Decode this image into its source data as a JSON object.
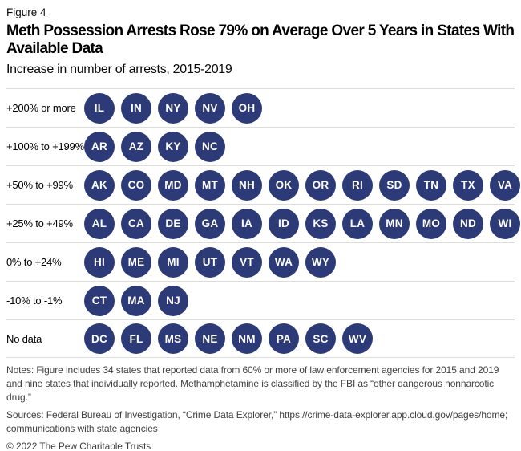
{
  "figure_label": "Figure 4",
  "title": "Meth Possession Arrests Rose 79% on Average Over 5 Years in States With Available Data",
  "subtitle": "Increase in number of arrests, 2015-2019",
  "chart_data": {
    "type": "table",
    "title": "Meth Possession Arrests Rose 79% on Average Over 5 Years in States With Available Data",
    "subtitle": "Increase in number of arrests, 2015-2019",
    "categories": [
      "+200% or more",
      "+100% to +199%",
      "+50% to +99%",
      "+25% to +49%",
      "0% to +24%",
      "-10% to -1%",
      "No data"
    ],
    "rows": [
      {
        "label": "+200% or more",
        "states": [
          "IL",
          "IN",
          "NY",
          "NV",
          "OH"
        ]
      },
      {
        "label": "+100% to +199%",
        "states": [
          "AR",
          "AZ",
          "KY",
          "NC"
        ]
      },
      {
        "label": "+50% to +99%",
        "states": [
          "AK",
          "CO",
          "MD",
          "MT",
          "NH",
          "OK",
          "OR",
          "RI",
          "SD",
          "TN",
          "TX",
          "VA"
        ]
      },
      {
        "label": "+25% to +49%",
        "states": [
          "AL",
          "CA",
          "DE",
          "GA",
          "IA",
          "ID",
          "KS",
          "LA",
          "MN",
          "MO",
          "ND",
          "WI"
        ]
      },
      {
        "label": "0% to +24%",
        "states": [
          "HI",
          "ME",
          "MI",
          "UT",
          "VT",
          "WA",
          "WY"
        ]
      },
      {
        "label": "-10% to -1%",
        "states": [
          "CT",
          "MA",
          "NJ"
        ]
      },
      {
        "label": "No data",
        "states": [
          "DC",
          "FL",
          "MS",
          "NE",
          "NM",
          "PA",
          "SC",
          "WV"
        ]
      }
    ],
    "layout": {
      "grid": "off",
      "legend": "none",
      "marker": "filled-circle"
    }
  },
  "footer": {
    "notes": "Notes: Figure includes 34 states that reported data from 60% or more of law enforcement agencies for 2015 and 2019 and nine states that individually reported. Methamphetamine is classified by the FBI as “other dangerous nonnarcotic drug.”",
    "sources": "Sources: Federal Bureau of Investigation, “Crime Data Explorer,” https://crime-data-explorer.app.cloud.gov/pages/home; communications with state agencies",
    "copyright": "© 2022 The Pew Charitable Trusts"
  },
  "colors": {
    "circle": "#2d3a78",
    "circle_text": "#ffffff",
    "divider": "#dcdcdc",
    "footer_text": "#3f3f3f"
  }
}
